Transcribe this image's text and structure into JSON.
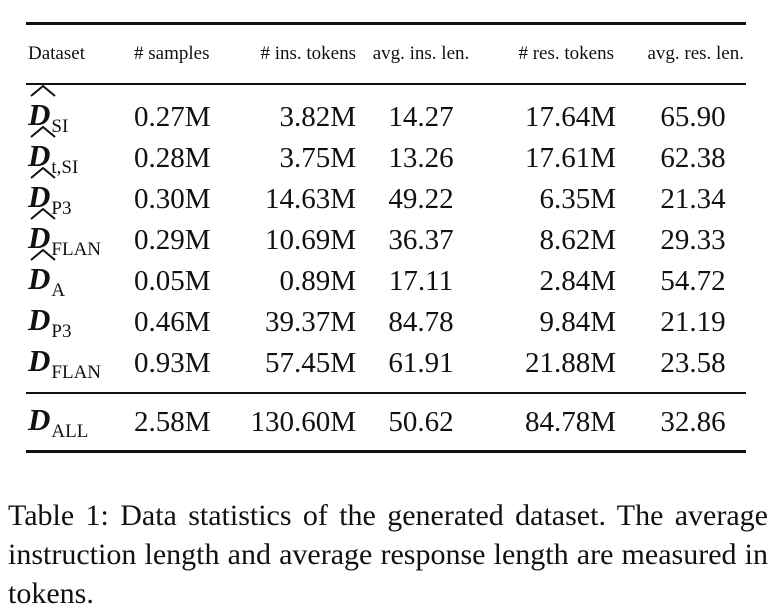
{
  "table": {
    "headers": [
      "Dataset",
      "# samples",
      "# ins. tokens",
      "avg. ins. len.",
      "# res. tokens",
      "avg. res. len."
    ],
    "rows": [
      {
        "symbol": "D",
        "hat": true,
        "subscript": "SI",
        "samples": "0.27M",
        "ins_tokens": "3.82M",
        "avg_ins_len": "14.27",
        "res_tokens": "17.64M",
        "avg_res_len": "65.90"
      },
      {
        "symbol": "D",
        "hat": true,
        "subscript": "t,SI",
        "samples": "0.28M",
        "ins_tokens": "3.75M",
        "avg_ins_len": "13.26",
        "res_tokens": "17.61M",
        "avg_res_len": "62.38"
      },
      {
        "symbol": "D",
        "hat": true,
        "subscript": "P3",
        "samples": "0.30M",
        "ins_tokens": "14.63M",
        "avg_ins_len": "49.22",
        "res_tokens": "6.35M",
        "avg_res_len": "21.34"
      },
      {
        "symbol": "D",
        "hat": true,
        "subscript": "FLAN",
        "samples": "0.29M",
        "ins_tokens": "10.69M",
        "avg_ins_len": "36.37",
        "res_tokens": "8.62M",
        "avg_res_len": "29.33"
      },
      {
        "symbol": "D",
        "hat": true,
        "subscript": "A",
        "samples": "0.05M",
        "ins_tokens": "0.89M",
        "avg_ins_len": "17.11",
        "res_tokens": "2.84M",
        "avg_res_len": "54.72"
      },
      {
        "symbol": "D",
        "hat": false,
        "subscript": "P3",
        "samples": "0.46M",
        "ins_tokens": "39.37M",
        "avg_ins_len": "84.78",
        "res_tokens": "9.84M",
        "avg_res_len": "21.19"
      },
      {
        "symbol": "D",
        "hat": false,
        "subscript": "FLAN",
        "samples": "0.93M",
        "ins_tokens": "57.45M",
        "avg_ins_len": "61.91",
        "res_tokens": "21.88M",
        "avg_res_len": "23.58"
      }
    ],
    "total": {
      "symbol": "D",
      "hat": false,
      "subscript": "ALL",
      "samples": "2.58M",
      "ins_tokens": "130.60M",
      "avg_ins_len": "50.62",
      "res_tokens": "84.78M",
      "avg_res_len": "32.86"
    }
  },
  "caption": "Table 1: Data statistics of the generated dataset. The average instruction length and average response length are measured in tokens."
}
